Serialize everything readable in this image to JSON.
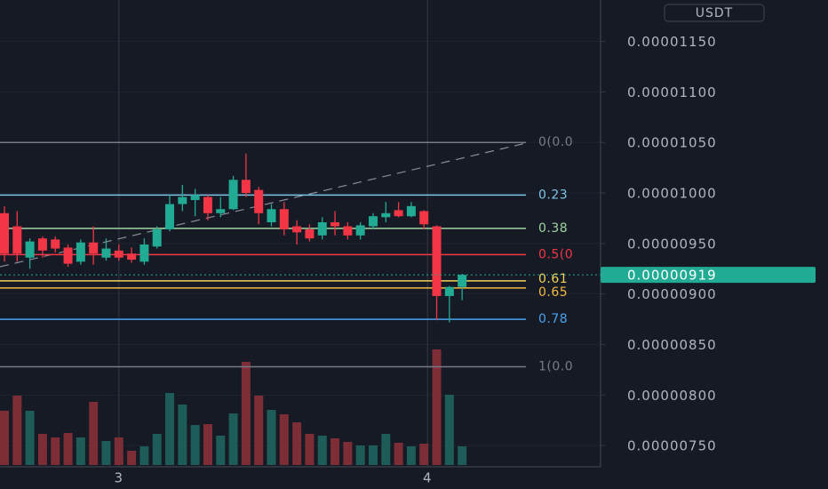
{
  "chart_data": {
    "type": "candlestick",
    "quote_currency": "USDT",
    "ylim": [
      7.29e-06,
      1.191e-05
    ],
    "yticks": [
      {
        "value": 1.15e-05,
        "label": "0.00001150"
      },
      {
        "value": 1.1e-05,
        "label": "0.00001100"
      },
      {
        "value": 1.05e-05,
        "label": "0.00001050"
      },
      {
        "value": 1e-05,
        "label": "0.00001000"
      },
      {
        "value": 9.5e-06,
        "label": "0.00000950"
      },
      {
        "value": 9e-06,
        "label": "0.00000900"
      },
      {
        "value": 8.5e-06,
        "label": "0.00000850"
      },
      {
        "value": 8e-06,
        "label": "0.00000800"
      },
      {
        "value": 7.5e-06,
        "label": "0.00000750"
      }
    ],
    "grid": true,
    "up_color": "#22ab94",
    "down_color": "#f23645",
    "volume_up_color": "#1d5c58",
    "volume_down_color": "#7c2d35",
    "categories": [
      null,
      null,
      null,
      null,
      null,
      null,
      null,
      null,
      null,
      "3",
      null,
      null,
      null,
      null,
      null,
      null,
      null,
      null,
      null,
      null,
      null,
      null,
      null,
      null,
      null,
      null,
      null,
      null,
      null,
      null,
      null,
      null,
      null,
      "4",
      null,
      null,
      null
    ],
    "open": [
      9.8e-06,
      9.67e-06,
      9.36e-06,
      9.55e-06,
      9.54e-06,
      9.46e-06,
      9.32e-06,
      9.51e-06,
      9.36e-06,
      9.43e-06,
      9.4e-06,
      9.32e-06,
      9.47e-06,
      9.64e-06,
      9.89e-06,
      9.93e-06,
      9.96e-06,
      9.8e-06,
      9.84e-06,
      1.013e-05,
      1.003e-05,
      9.71e-06,
      9.84e-06,
      9.67e-06,
      9.64e-06,
      9.58e-06,
      9.71e-06,
      9.67e-06,
      9.58e-06,
      9.67e-06,
      9.76e-06,
      9.83e-06,
      9.77e-06,
      9.82e-06,
      9.67e-06,
      8.98e-06,
      9.07e-06
    ],
    "close": [
      9.4e-06,
      9.4e-06,
      9.52e-06,
      9.43e-06,
      9.45e-06,
      9.3e-06,
      9.51e-06,
      9.4e-06,
      9.45e-06,
      9.36e-06,
      9.34e-06,
      9.49e-06,
      9.64e-06,
      9.89e-06,
      9.96e-06,
      9.98e-06,
      9.8e-06,
      9.84e-06,
      1.013e-05,
      1e-05,
      9.8e-06,
      9.84e-06,
      9.64e-06,
      9.61e-06,
      9.55e-06,
      9.71e-06,
      9.67e-06,
      9.58e-06,
      9.68e-06,
      9.77e-06,
      9.8e-06,
      9.77e-06,
      9.87e-06,
      9.69e-06,
      8.98e-06,
      9.07e-06,
      9.19e-06
    ],
    "high": [
      9.87e-06,
      9.82e-06,
      9.55e-06,
      9.57e-06,
      9.57e-06,
      9.49e-06,
      9.54e-06,
      9.67e-06,
      9.55e-06,
      9.49e-06,
      9.46e-06,
      9.55e-06,
      9.67e-06,
      9.98e-06,
      1.008e-05,
      1.004e-05,
      9.98e-06,
      9.96e-06,
      1.017e-05,
      1.039e-05,
      1.006e-05,
      9.89e-06,
      9.91e-06,
      9.73e-06,
      9.69e-06,
      9.76e-06,
      9.82e-06,
      9.71e-06,
      9.71e-06,
      9.8e-06,
      9.91e-06,
      9.91e-06,
      9.91e-06,
      9.83e-06,
      9.68e-06,
      9.08e-06,
      9.2e-06
    ],
    "low": [
      9.32e-06,
      9.32e-06,
      9.25e-06,
      9.36e-06,
      9.41e-06,
      9.27e-06,
      9.29e-06,
      9.29e-06,
      9.33e-06,
      9.33e-06,
      9.31e-06,
      9.29e-06,
      9.45e-06,
      9.62e-06,
      9.82e-06,
      9.77e-06,
      9.73e-06,
      9.76e-06,
      9.83e-06,
      9.96e-06,
      9.69e-06,
      9.67e-06,
      9.58e-06,
      9.49e-06,
      9.52e-06,
      9.54e-06,
      9.58e-06,
      9.54e-06,
      9.54e-06,
      9.64e-06,
      9.71e-06,
      9.76e-06,
      9.76e-06,
      9.64e-06,
      8.74e-06,
      8.72e-06,
      8.94e-06
    ],
    "volume": [
      61,
      78,
      61,
      35,
      31,
      36,
      31,
      71,
      27,
      31,
      16,
      21,
      35,
      81,
      68,
      45,
      46,
      33,
      58,
      116,
      78,
      62,
      57,
      48,
      35,
      33,
      30,
      26,
      22,
      22,
      35,
      25,
      21,
      24,
      130,
      79,
      21
    ],
    "current_price": {
      "value": 9.19e-06,
      "label": "0.00000919"
    },
    "fib_levels": [
      {
        "label": "0(0.0",
        "price": 1.05e-05,
        "color": "#787b86"
      },
      {
        "label": "0.23",
        "price": 9.98e-06,
        "color": "#7ec6e6"
      },
      {
        "label": "0.38",
        "price": 9.65e-06,
        "color": "#9fd4a3"
      },
      {
        "label": "0.5(0",
        "price": 9.39e-06,
        "color": "#f23645"
      },
      {
        "label": "0.61",
        "price": 9.13e-06,
        "color": "#f0d35a"
      },
      {
        "label": "0.65",
        "price": 9.06e-06,
        "color": "#f5b942"
      },
      {
        "label": "0.78",
        "price": 8.75e-06,
        "color": "#4aa3ef"
      },
      {
        "label": "1(0.0",
        "price": 8.28e-06,
        "color": "#787b86"
      }
    ]
  }
}
